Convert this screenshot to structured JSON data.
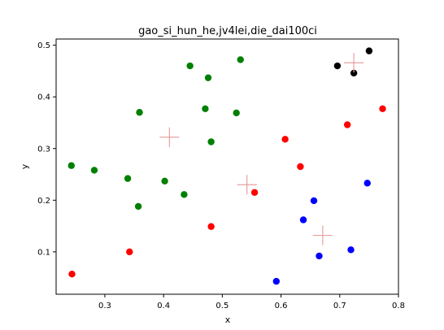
{
  "chart_data": {
    "type": "scatter",
    "title": "gao_si_hun_he,jv4lei,die_dai100ci",
    "xlabel": "x",
    "ylabel": "y",
    "xlim": [
      0.217,
      0.8
    ],
    "ylim": [
      0.018,
      0.512
    ],
    "x_ticks": [
      "0.3",
      "0.4",
      "0.5",
      "0.6",
      "0.7",
      "0.8"
    ],
    "x_tick_values": [
      0.3,
      0.4,
      0.5,
      0.6,
      0.7,
      0.8
    ],
    "y_ticks": [
      "0.1",
      "0.2",
      "0.3",
      "0.4",
      "0.5"
    ],
    "y_tick_values": [
      0.1,
      0.2,
      0.3,
      0.4,
      0.5
    ],
    "grid": false,
    "legend": "none",
    "series": [
      {
        "color": "#008000",
        "points": [
          [
            0.243,
            0.267
          ],
          [
            0.282,
            0.258
          ],
          [
            0.339,
            0.242
          ],
          [
            0.357,
            0.188
          ],
          [
            0.359,
            0.37
          ],
          [
            0.402,
            0.237
          ],
          [
            0.435,
            0.211
          ],
          [
            0.445,
            0.46
          ],
          [
            0.471,
            0.377
          ],
          [
            0.476,
            0.437
          ],
          [
            0.481,
            0.313
          ],
          [
            0.524,
            0.369
          ],
          [
            0.531,
            0.472
          ]
        ]
      },
      {
        "color": "#ff0000",
        "points": [
          [
            0.244,
            0.057
          ],
          [
            0.342,
            0.1
          ],
          [
            0.481,
            0.149
          ],
          [
            0.555,
            0.215
          ],
          [
            0.607,
            0.318
          ],
          [
            0.633,
            0.265
          ],
          [
            0.713,
            0.346
          ],
          [
            0.773,
            0.377
          ]
        ]
      },
      {
        "color": "#0000ff",
        "points": [
          [
            0.592,
            0.043
          ],
          [
            0.638,
            0.162
          ],
          [
            0.656,
            0.199
          ],
          [
            0.665,
            0.092
          ],
          [
            0.719,
            0.104
          ],
          [
            0.747,
            0.233
          ]
        ]
      },
      {
        "color": "#000000",
        "points": [
          [
            0.696,
            0.46
          ],
          [
            0.724,
            0.446
          ],
          [
            0.75,
            0.489
          ]
        ]
      }
    ],
    "centroids": {
      "color": "#e8a0a0",
      "points": [
        [
          0.41,
          0.322
        ],
        [
          0.542,
          0.23
        ],
        [
          0.671,
          0.132
        ],
        [
          0.724,
          0.466
        ]
      ]
    }
  }
}
